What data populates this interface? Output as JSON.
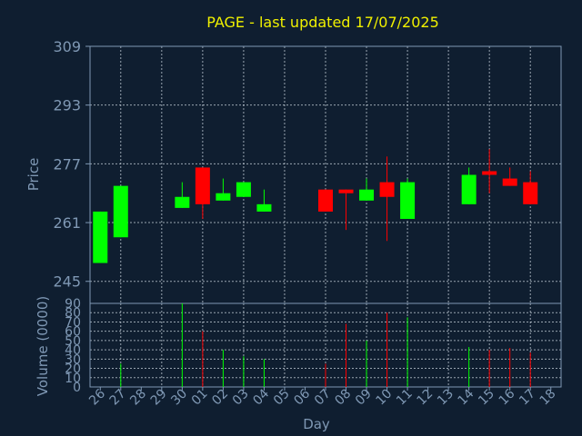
{
  "chart_data": {
    "type": "candlestick",
    "title": "PAGE - last updated 17/07/2025",
    "xlabel": "Day",
    "price_panel": {
      "ylabel": "Price",
      "yticks": [
        245,
        261,
        277,
        293,
        309
      ],
      "ylim": [
        239,
        309
      ]
    },
    "volume_panel": {
      "ylabel": "Volume (0000)",
      "yticks": [
        0,
        10,
        20,
        30,
        40,
        50,
        60,
        70,
        80,
        90
      ],
      "ylim": [
        0,
        90
      ]
    },
    "x_ticks": [
      "26",
      "27",
      "28",
      "29",
      "30",
      "01",
      "02",
      "03",
      "04",
      "05",
      "06",
      "07",
      "08",
      "09",
      "10",
      "11",
      "12",
      "13",
      "14",
      "15",
      "16",
      "17",
      "18"
    ],
    "grid": true,
    "up_color": "#00ff00",
    "down_color": "#ff0000",
    "candles": [
      {
        "day": "26",
        "open": 250,
        "close": 264,
        "high": 264,
        "low": 250,
        "volume": 0
      },
      {
        "day": "27",
        "open": 257,
        "close": 271,
        "high": 271,
        "low": 257,
        "volume": 25
      },
      {
        "day": "30",
        "open": 265,
        "close": 268,
        "high": 272,
        "low": 265,
        "volume": 90
      },
      {
        "day": "01",
        "open": 276,
        "close": 266,
        "high": 276,
        "low": 262,
        "volume": 60
      },
      {
        "day": "02",
        "open": 267,
        "close": 269,
        "high": 273,
        "low": 267,
        "volume": 40
      },
      {
        "day": "03",
        "open": 268,
        "close": 272,
        "high": 272,
        "low": 268,
        "volume": 33
      },
      {
        "day": "04",
        "open": 264,
        "close": 266,
        "high": 270,
        "low": 264,
        "volume": 30
      },
      {
        "day": "07",
        "open": 270,
        "close": 264,
        "high": 270,
        "low": 264,
        "volume": 25
      },
      {
        "day": "08",
        "open": 270,
        "close": 269,
        "high": 270,
        "low": 259,
        "volume": 68
      },
      {
        "day": "09",
        "open": 267,
        "close": 270,
        "high": 273,
        "low": 267,
        "volume": 50
      },
      {
        "day": "10",
        "open": 272,
        "close": 268,
        "high": 279,
        "low": 256,
        "volume": 80
      },
      {
        "day": "11",
        "open": 262,
        "close": 272,
        "high": 273,
        "low": 262,
        "volume": 75
      },
      {
        "day": "14",
        "open": 266,
        "close": 274,
        "high": 276,
        "low": 266,
        "volume": 43
      },
      {
        "day": "15",
        "open": 275,
        "close": 274,
        "high": 281,
        "low": 269,
        "volume": 40
      },
      {
        "day": "16",
        "open": 273,
        "close": 271,
        "high": 276,
        "low": 271,
        "volume": 42
      },
      {
        "day": "17",
        "open": 272,
        "close": 266,
        "high": 275,
        "low": 266,
        "volume": 37
      }
    ]
  }
}
